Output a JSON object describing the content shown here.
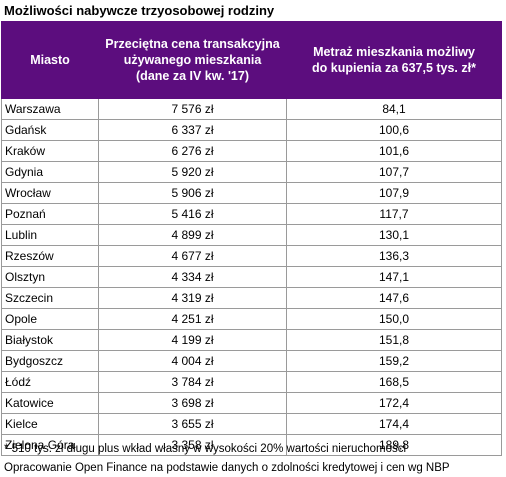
{
  "title": "Możliwości nabywcze trzyosobowej rodziny",
  "headers": {
    "city": [
      "Miasto"
    ],
    "price": [
      "Przeciętna cena transakcyjna",
      "używanego mieszkania",
      "(dane za IV kw. '17)"
    ],
    "area": [
      "Metraż mieszkania możliwy",
      "do kupienia za 637,5 tys. zł*"
    ]
  },
  "rows": [
    {
      "city": "Warszawa",
      "price": "7 576 zł",
      "area": "84,1"
    },
    {
      "city": "Gdańsk",
      "price": "6 337 zł",
      "area": "100,6"
    },
    {
      "city": "Kraków",
      "price": "6 276 zł",
      "area": "101,6"
    },
    {
      "city": "Gdynia",
      "price": "5 920 zł",
      "area": "107,7"
    },
    {
      "city": "Wrocław",
      "price": "5 906 zł",
      "area": "107,9"
    },
    {
      "city": "Poznań",
      "price": "5 416 zł",
      "area": "117,7"
    },
    {
      "city": "Lublin",
      "price": "4 899 zł",
      "area": "130,1"
    },
    {
      "city": "Rzeszów",
      "price": "4 677 zł",
      "area": "136,3"
    },
    {
      "city": "Olsztyn",
      "price": "4 334 zł",
      "area": "147,1"
    },
    {
      "city": "Szczecin",
      "price": "4 319 zł",
      "area": "147,6"
    },
    {
      "city": "Opole",
      "price": "4 251 zł",
      "area": "150,0"
    },
    {
      "city": "Białystok",
      "price": "4 199 zł",
      "area": "151,8"
    },
    {
      "city": "Bydgoszcz",
      "price": "4 004 zł",
      "area": "159,2"
    },
    {
      "city": "Łódź",
      "price": "3 784 zł",
      "area": "168,5"
    },
    {
      "city": "Katowice",
      "price": "3 698 zł",
      "area": "172,4"
    },
    {
      "city": "Kielce",
      "price": "3 655 zł",
      "area": "174,4"
    },
    {
      "city": "Zielona Góra",
      "price": "3 358 zł",
      "area": "189,8"
    }
  ],
  "footnotes": [
    "* 510 tys. zł długu plus wkład własny w wysokości 20% wartości nieruchomości",
    "Opracowanie Open Finance na podstawie danych o zdolności kredytowej i cen wg NBP"
  ],
  "colors": {
    "header_bg": "#5c0d7e",
    "header_text": "#ffffff",
    "grid": "#9a9a9a"
  }
}
